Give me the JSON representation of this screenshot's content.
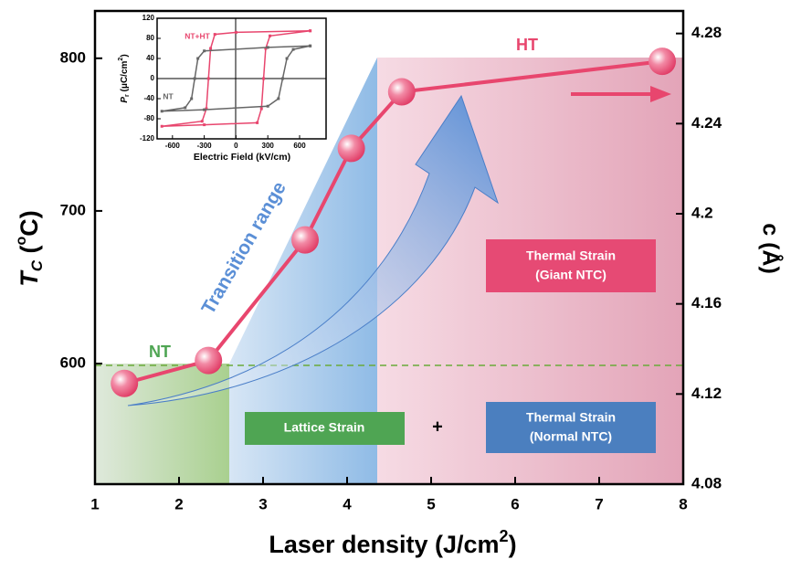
{
  "chart_data": [
    {
      "type": "line",
      "xlabel": [
        "Laser density (J/cm",
        "2",
        ")"
      ],
      "ylabel": [
        "T",
        "C",
        " (",
        "o",
        "C)"
      ],
      "y2label": "c (Å)",
      "x": [
        1.35,
        2.35,
        3.5,
        4.05,
        4.65,
        7.75
      ],
      "values": [
        587,
        602,
        681,
        741,
        778,
        798
      ],
      "color": "#e8466e",
      "xlim": [
        1,
        8
      ],
      "xticks": [
        1,
        2,
        3,
        4,
        5,
        6,
        7,
        8
      ],
      "ylim": [
        521,
        831
      ],
      "yticks": [
        600,
        700,
        800
      ],
      "y2lim": [
        4.08,
        4.29
      ],
      "y2ticks": [
        4.08,
        4.12,
        4.16,
        4.2,
        4.24,
        4.28
      ],
      "annotations": {
        "nt": "NT",
        "ht": "HT",
        "transition": "Transition range",
        "lattice": "Lattice Strain",
        "plus": "+",
        "normal": [
          "Thermal Strain",
          "(Normal NTC)"
        ],
        "giant": [
          "Thermal Strain",
          "(Giant NTC)"
        ]
      }
    },
    {
      "type": "line",
      "xlabel": "Electric Field (kV/cm)",
      "ylabel": [
        "P",
        "r",
        " (μC/cm",
        "2",
        ")"
      ],
      "xlim": [
        -745,
        850
      ],
      "xticks": [
        -600,
        -300,
        0,
        300,
        600
      ],
      "ylim": [
        -120,
        120
      ],
      "yticks": [
        -120,
        -80,
        -40,
        0,
        40,
        80,
        120
      ],
      "series": [
        {
          "name": "NT+HT",
          "color": "#e8466e",
          "x": [
            700,
            0,
            -200,
            -240,
            -260,
            -280,
            -320,
            -700,
            -300,
            200,
            240,
            260,
            280,
            320,
            700
          ],
          "values": [
            95,
            92,
            88,
            60,
            0,
            -60,
            -85,
            -95,
            -92,
            -88,
            -60,
            0,
            60,
            85,
            95
          ]
        },
        {
          "name": "NT",
          "color": "#666666",
          "x": [
            700,
            300,
            -300,
            -360,
            -390,
            -420,
            -480,
            -700,
            -300,
            300,
            400,
            440,
            480,
            540,
            700
          ],
          "values": [
            65,
            62,
            55,
            40,
            0,
            -40,
            -58,
            -65,
            -62,
            -55,
            -40,
            0,
            40,
            58,
            65
          ]
        }
      ]
    }
  ]
}
